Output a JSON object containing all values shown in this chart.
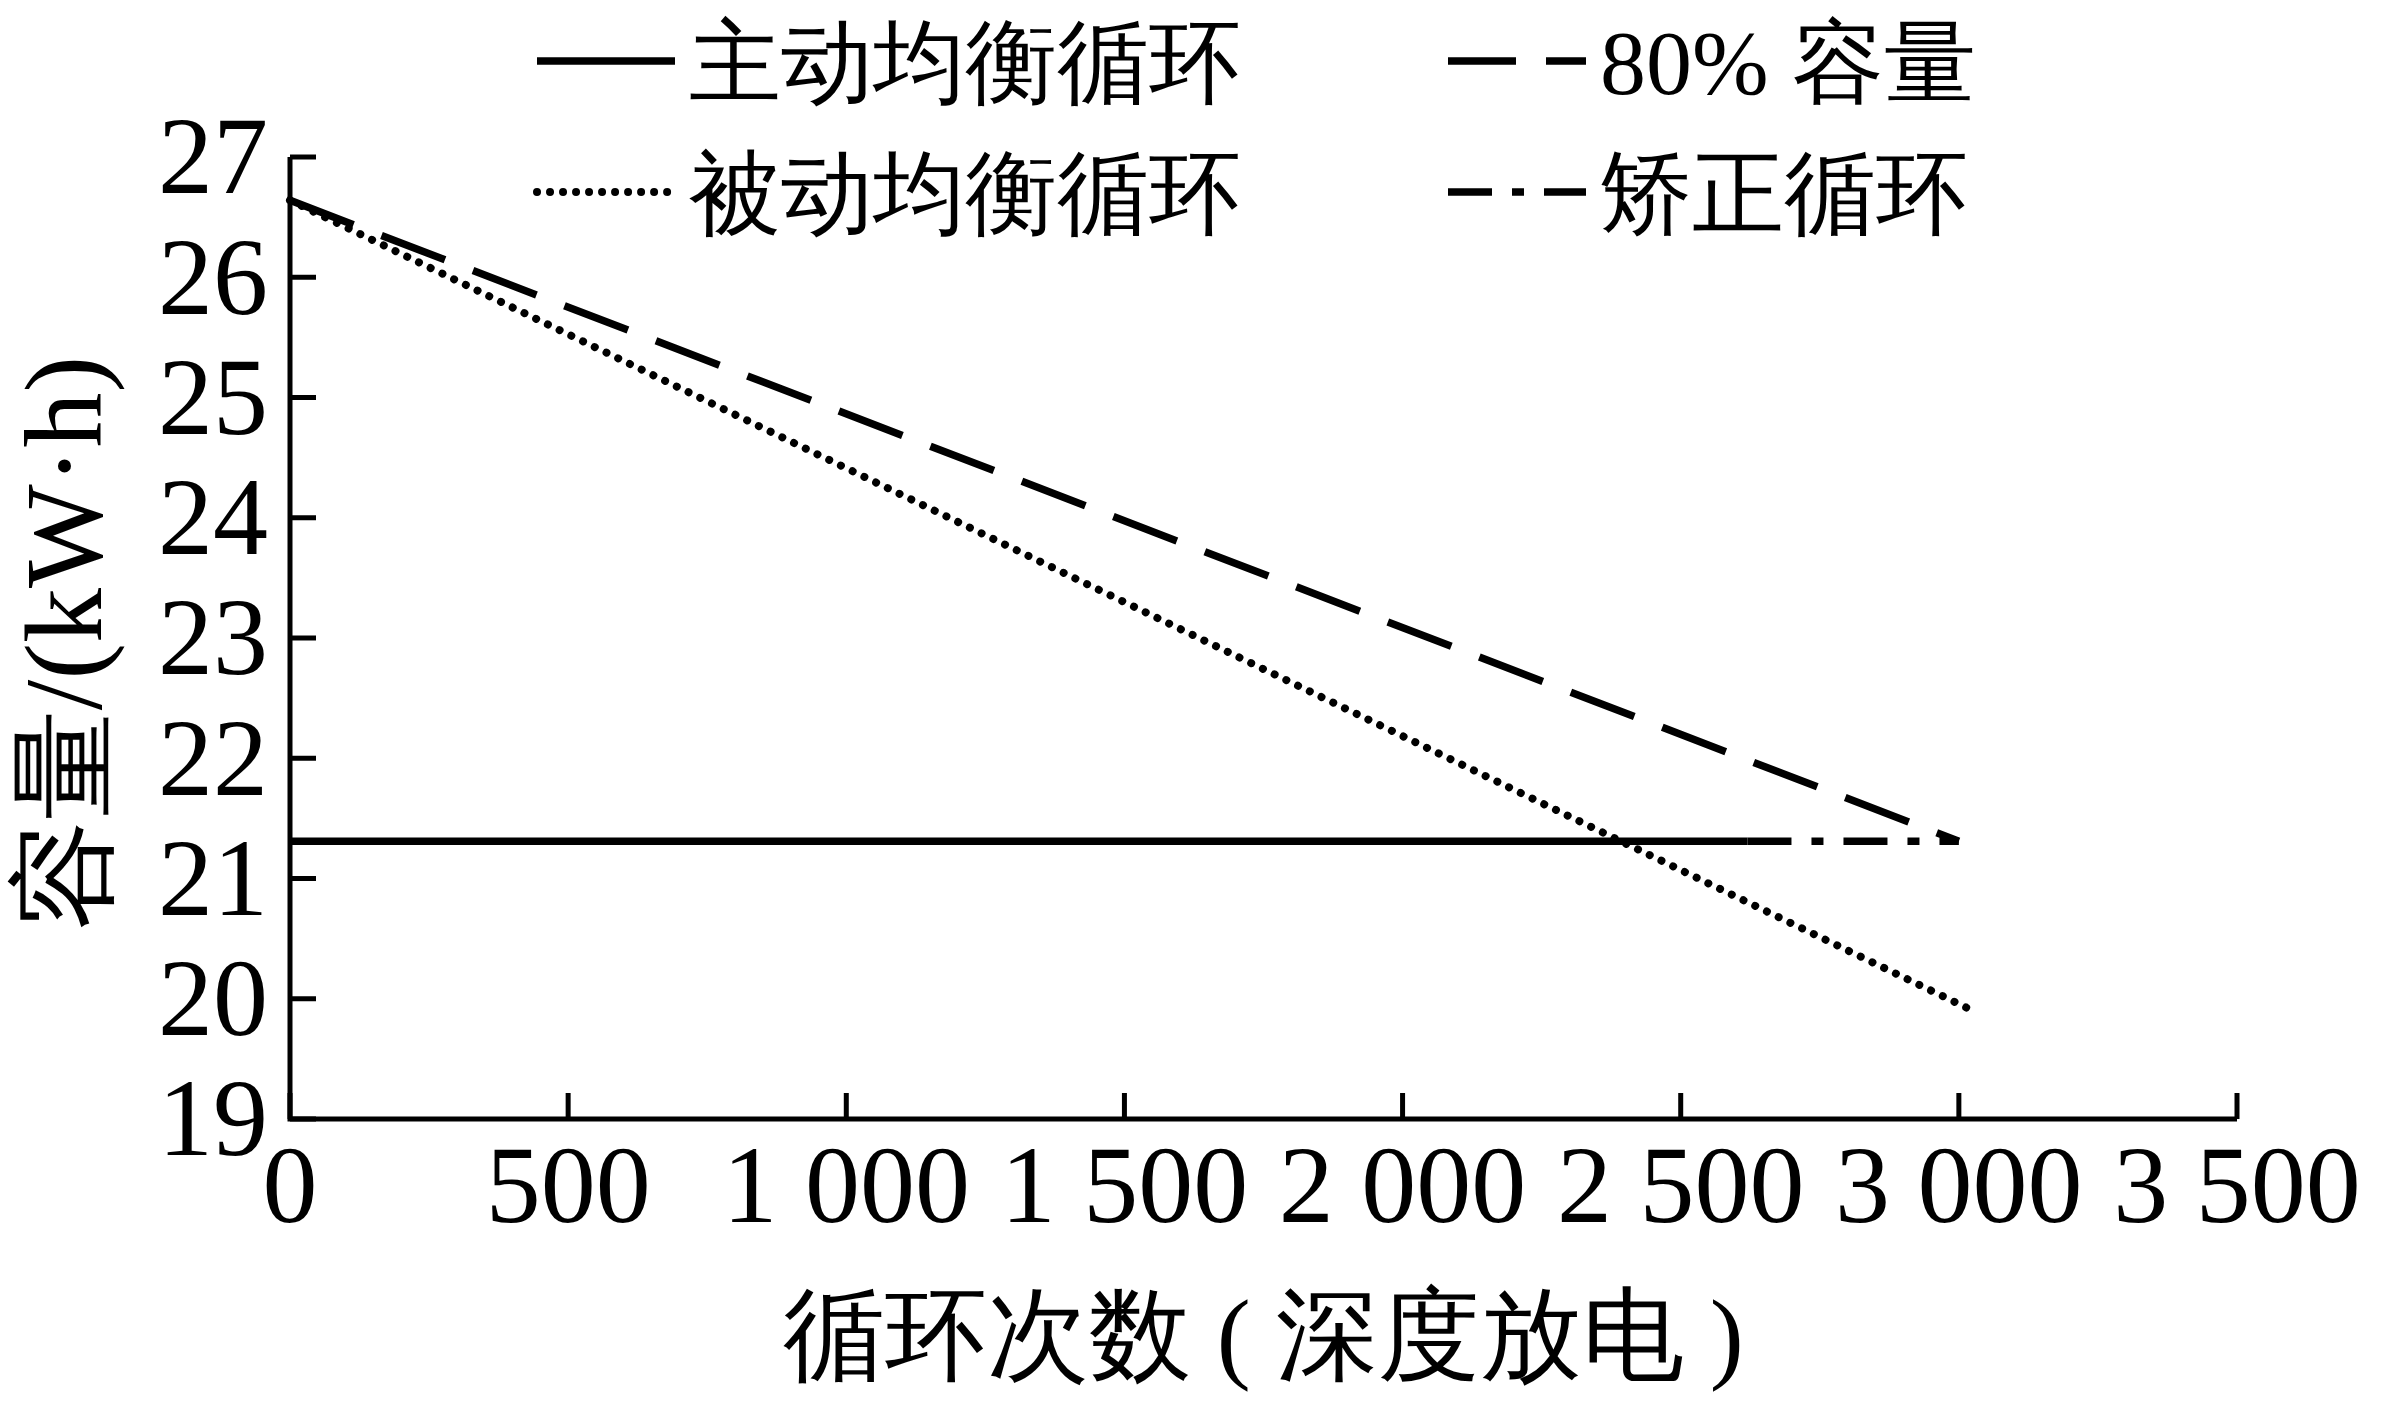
{
  "chart_data": {
    "type": "line",
    "xlabel": "循环次数 ( 深度放电 )",
    "ylabel": "容量/(kW·h)",
    "xlim": [
      0,
      3500
    ],
    "ylim": [
      19,
      27
    ],
    "xticks": [
      0,
      500,
      {
        "value": 1000,
        "label": "1 000"
      },
      {
        "value": 1500,
        "label": "1 500"
      },
      {
        "value": 2000,
        "label": "2 000"
      },
      {
        "value": 2500,
        "label": "2 500"
      },
      {
        "value": 3000,
        "label": "3 000"
      },
      {
        "value": 3500,
        "label": "3 500"
      }
    ],
    "yticks": [
      19,
      20,
      21,
      22,
      23,
      24,
      25,
      26,
      27
    ],
    "legend": "top",
    "series": [
      {
        "name": "主动均衡循环",
        "color": "#000000",
        "line_style": "solid",
        "x": [
          0,
          2620
        ],
        "values": [
          21.31,
          21.31
        ]
      },
      {
        "name": "80% 容量",
        "color": "#000000",
        "line_style": "dashed",
        "x": [
          0,
          3000
        ],
        "values": [
          26.64,
          21.31
        ]
      },
      {
        "name": "被动均衡循环",
        "color": "#000000",
        "line_style": "dotted",
        "x": [
          0,
          3030
        ],
        "values": [
          26.64,
          19.89
        ]
      },
      {
        "name": "矫正循环",
        "color": "#000000",
        "line_style": "dashdot",
        "x": [
          2620,
          3000
        ],
        "values": [
          21.31,
          21.31
        ]
      }
    ]
  }
}
